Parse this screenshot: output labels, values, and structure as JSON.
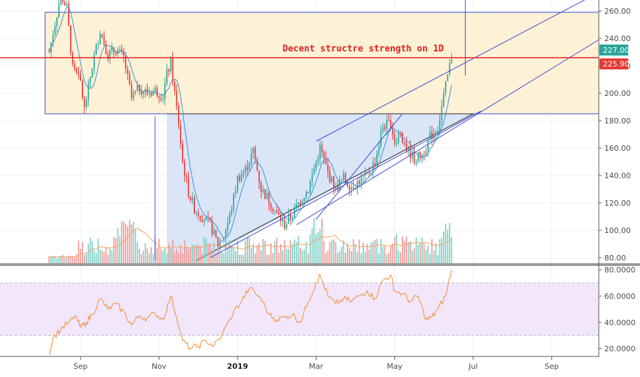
{
  "chart_data": [
    {
      "type": "candlestick",
      "annotation": "Decent structre strength on 1D",
      "y_ticks": [
        "260.00",
        "240.00",
        "220.00",
        "200.00",
        "180.00",
        "160.00",
        "140.00",
        "120.00",
        "100.00",
        "80.00"
      ],
      "ylim": [
        76,
        268
      ],
      "x_ticks": [
        {
          "label": "Sep",
          "month": 9,
          "bold": false
        },
        {
          "label": "Nov",
          "month": 11,
          "bold": false
        },
        {
          "label": "2019",
          "month": 13,
          "bold": true
        },
        {
          "label": "Mar",
          "month": 15,
          "bold": false
        },
        {
          "label": "May",
          "month": 17,
          "bold": false
        },
        {
          "label": "Jul",
          "month": 19,
          "bold": false
        },
        {
          "label": "Sep",
          "month": 21,
          "bold": false
        }
      ],
      "price_badges": [
        {
          "value": 227.0,
          "label": "227.00",
          "color": "#26a69a"
        },
        {
          "value": 225.9,
          "label": "225.90",
          "color": "#e53935"
        }
      ],
      "resistance_level": 225.9,
      "close_path": [
        [
          8.2,
          230
        ],
        [
          8.5,
          272
        ],
        [
          8.65,
          262
        ],
        [
          8.8,
          218
        ],
        [
          9.0,
          208
        ],
        [
          9.1,
          188
        ],
        [
          9.3,
          220
        ],
        [
          9.5,
          246
        ],
        [
          9.7,
          228
        ],
        [
          9.9,
          232
        ],
        [
          10.1,
          226
        ],
        [
          10.3,
          196
        ],
        [
          10.5,
          204
        ],
        [
          10.7,
          200
        ],
        [
          10.9,
          202
        ],
        [
          11.1,
          198
        ],
        [
          11.2,
          214
        ],
        [
          11.3,
          222
        ],
        [
          11.4,
          200
        ],
        [
          11.5,
          178
        ],
        [
          11.6,
          150
        ],
        [
          11.75,
          128
        ],
        [
          11.9,
          116
        ],
        [
          12.1,
          110
        ],
        [
          12.3,
          104
        ],
        [
          12.5,
          90
        ],
        [
          12.65,
          96
        ],
        [
          12.8,
          110
        ],
        [
          13.0,
          138
        ],
        [
          13.2,
          144
        ],
        [
          13.4,
          158
        ],
        [
          13.6,
          130
        ],
        [
          13.8,
          122
        ],
        [
          14.0,
          112
        ],
        [
          14.2,
          104
        ],
        [
          14.4,
          112
        ],
        [
          14.6,
          122
        ],
        [
          14.8,
          130
        ],
        [
          15.0,
          150
        ],
        [
          15.1,
          160
        ],
        [
          15.3,
          142
        ],
        [
          15.5,
          130
        ],
        [
          15.7,
          138
        ],
        [
          15.9,
          132
        ],
        [
          16.1,
          136
        ],
        [
          16.3,
          140
        ],
        [
          16.5,
          150
        ],
        [
          16.7,
          176
        ],
        [
          16.9,
          178
        ],
        [
          17.0,
          165
        ],
        [
          17.15,
          172
        ],
        [
          17.3,
          160
        ],
        [
          17.5,
          152
        ],
        [
          17.7,
          155
        ],
        [
          17.9,
          168
        ],
        [
          18.1,
          175
        ],
        [
          18.3,
          205
        ],
        [
          18.45,
          227
        ]
      ],
      "volume_baseline": 76,
      "rsi": {
        "y_ticks": [
          "80.0000",
          "60.0000",
          "40.0000",
          "20.0000"
        ],
        "ylim": [
          14,
          83
        ],
        "band": [
          30,
          70
        ],
        "series": [
          [
            8.2,
            15
          ],
          [
            8.3,
            28
          ],
          [
            8.5,
            35
          ],
          [
            8.7,
            40
          ],
          [
            8.9,
            44
          ],
          [
            9.0,
            36
          ],
          [
            9.15,
            40
          ],
          [
            9.3,
            46
          ],
          [
            9.5,
            58
          ],
          [
            9.7,
            50
          ],
          [
            9.9,
            54
          ],
          [
            10.1,
            48
          ],
          [
            10.3,
            38
          ],
          [
            10.5,
            45
          ],
          [
            10.7,
            43
          ],
          [
            10.9,
            47
          ],
          [
            11.1,
            42
          ],
          [
            11.3,
            60
          ],
          [
            11.45,
            44
          ],
          [
            11.6,
            26
          ],
          [
            11.8,
            20
          ],
          [
            12.0,
            22
          ],
          [
            12.2,
            26
          ],
          [
            12.4,
            22
          ],
          [
            12.6,
            30
          ],
          [
            12.9,
            48
          ],
          [
            13.1,
            56
          ],
          [
            13.3,
            66
          ],
          [
            13.6,
            58
          ],
          [
            13.8,
            46
          ],
          [
            14.0,
            42
          ],
          [
            14.2,
            44
          ],
          [
            14.4,
            46
          ],
          [
            14.6,
            40
          ],
          [
            14.8,
            56
          ],
          [
            15.0,
            70
          ],
          [
            15.1,
            76
          ],
          [
            15.3,
            60
          ],
          [
            15.5,
            54
          ],
          [
            15.7,
            58
          ],
          [
            15.9,
            56
          ],
          [
            16.1,
            60
          ],
          [
            16.3,
            64
          ],
          [
            16.5,
            58
          ],
          [
            16.7,
            72
          ],
          [
            16.9,
            76
          ],
          [
            17.0,
            64
          ],
          [
            17.2,
            62
          ],
          [
            17.4,
            56
          ],
          [
            17.6,
            60
          ],
          [
            17.8,
            42
          ],
          [
            17.95,
            44
          ],
          [
            18.1,
            50
          ],
          [
            18.3,
            60
          ],
          [
            18.45,
            80
          ]
        ]
      }
    }
  ],
  "colors": {
    "up": "#26a69a",
    "down": "#e53935",
    "resistance": "#e02020",
    "channel": "#3b46d8",
    "box_fill": "#fdf1d6",
    "triangle_fill": "#dbe5f8",
    "rsi_line": "#f08a30",
    "rsi_band": "#f2e6fb"
  }
}
